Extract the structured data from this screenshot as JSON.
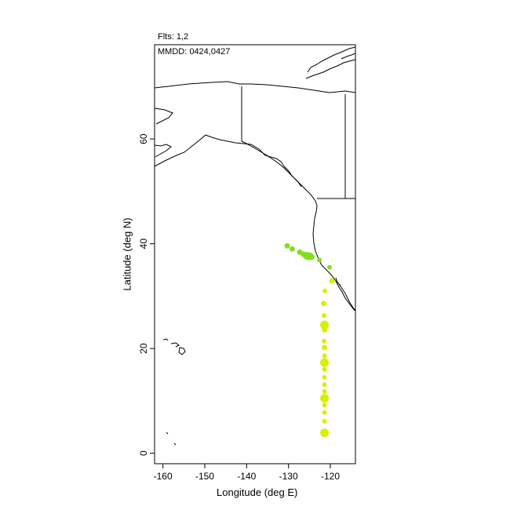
{
  "header": {
    "flights_text": "Flts: 1,2",
    "dates_text": "MMDD: 0424,0427"
  },
  "axes": {
    "xlabel": "Longitude (deg E)",
    "ylabel": "Latitude (deg N)"
  },
  "chart_data": {
    "type": "scatter",
    "xlim": [
      -162,
      -114
    ],
    "ylim": [
      -2,
      78
    ],
    "x_ticks": [
      -160,
      -150,
      -140,
      -130,
      -120
    ],
    "y_ticks": [
      0,
      20,
      40,
      60
    ],
    "colors": {
      "flight1": "#80e020",
      "flight2": "#d8f000"
    },
    "series": [
      {
        "name": "1",
        "points": [
          {
            "x": -130.3,
            "y": 39.6,
            "r": 3.5
          },
          {
            "x": -129.1,
            "y": 39.0,
            "r": 3.5
          },
          {
            "x": -127.3,
            "y": 38.4,
            "r": 3.5
          },
          {
            "x": -126.4,
            "y": 38.0,
            "r": 3.5
          },
          {
            "x": -125.6,
            "y": 37.7,
            "r": 5
          },
          {
            "x": -125.0,
            "y": 37.6,
            "r": 5
          },
          {
            "x": -124.5,
            "y": 37.5,
            "r": 4
          },
          {
            "x": -122.6,
            "y": 36.9,
            "r": 3
          },
          {
            "x": -120.2,
            "y": 35.5,
            "r": 3
          }
        ]
      },
      {
        "name": "2",
        "points": [
          {
            "x": -119.6,
            "y": 32.9,
            "r": 3.5
          },
          {
            "x": -121.3,
            "y": 31.0,
            "r": 3
          },
          {
            "x": -121.6,
            "y": 28.6,
            "r": 3.5
          },
          {
            "x": -121.5,
            "y": 26.3,
            "r": 3
          },
          {
            "x": -121.4,
            "y": 24.5,
            "r": 5.5
          },
          {
            "x": -121.4,
            "y": 23.6,
            "r": 3.5
          },
          {
            "x": -121.5,
            "y": 21.4,
            "r": 3
          },
          {
            "x": -121.4,
            "y": 20.2,
            "r": 3.5
          },
          {
            "x": -121.4,
            "y": 18.6,
            "r": 3
          },
          {
            "x": -121.4,
            "y": 17.3,
            "r": 5.5
          },
          {
            "x": -121.4,
            "y": 16.0,
            "r": 3
          },
          {
            "x": -121.4,
            "y": 14.5,
            "r": 3
          },
          {
            "x": -121.4,
            "y": 13.1,
            "r": 3
          },
          {
            "x": -121.4,
            "y": 11.8,
            "r": 3
          },
          {
            "x": -121.4,
            "y": 10.5,
            "r": 5.5
          },
          {
            "x": -121.4,
            "y": 9.2,
            "r": 3
          },
          {
            "x": -121.4,
            "y": 7.8,
            "r": 3
          },
          {
            "x": -121.4,
            "y": 6.1,
            "r": 3
          },
          {
            "x": -121.4,
            "y": 3.9,
            "r": 5.5
          }
        ]
      }
    ]
  }
}
